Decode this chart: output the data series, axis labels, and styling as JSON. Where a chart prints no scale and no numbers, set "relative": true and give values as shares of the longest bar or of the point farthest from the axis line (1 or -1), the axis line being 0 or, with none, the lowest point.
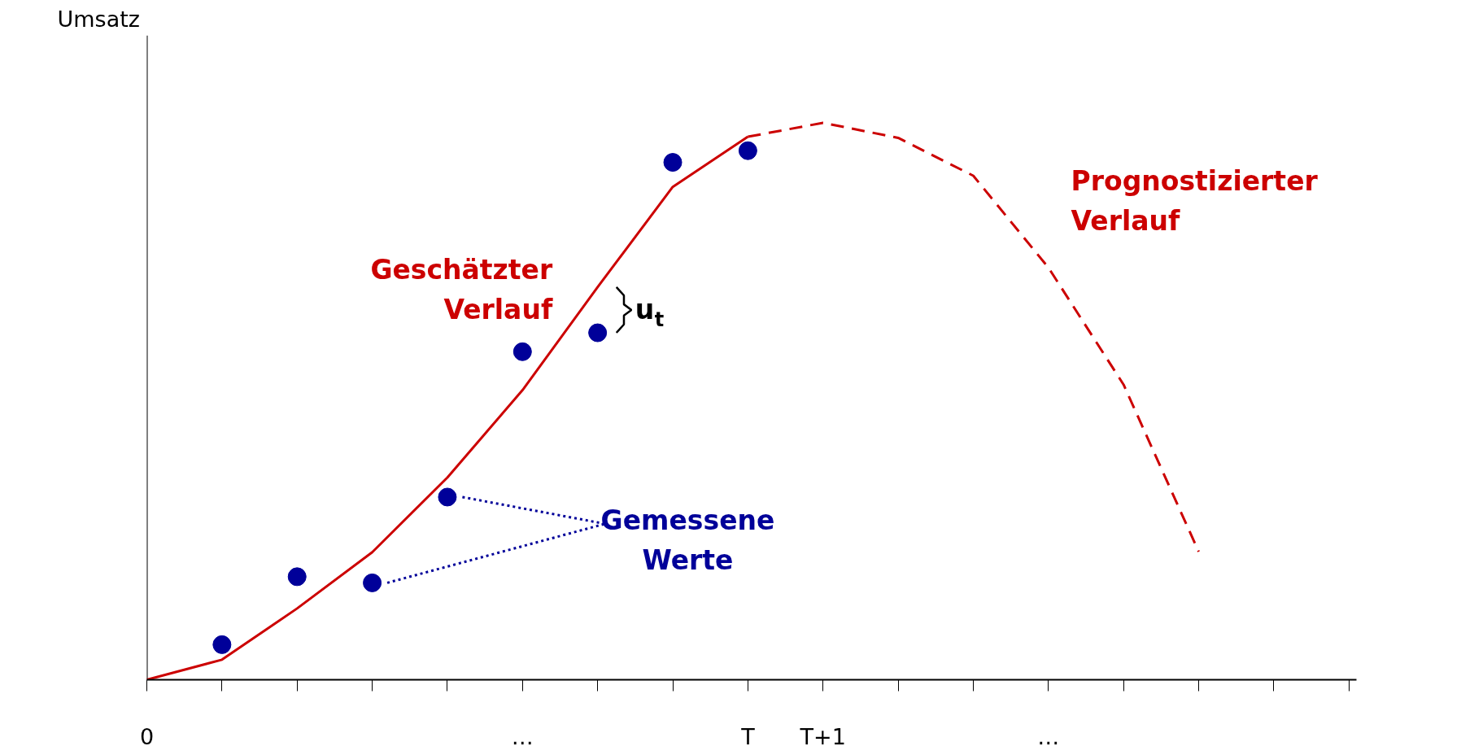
{
  "chart_data": {
    "type": "line",
    "relative": true,
    "ylabel": "Umsatz",
    "categories": [
      "0",
      null,
      null,
      null,
      null,
      "…",
      null,
      null,
      "T",
      "T+1",
      null,
      null,
      "…",
      null,
      null,
      null,
      null
    ],
    "series": [
      {
        "name": "Geschätzter Verlauf",
        "color": "#cc0000",
        "line_style": "solid",
        "values": [
          0,
          0.036,
          0.128,
          0.229,
          0.363,
          0.52,
          0.705,
          0.885,
          0.975,
          null,
          null,
          null,
          null,
          null,
          null,
          null,
          null
        ]
      },
      {
        "name": "Prognostizierter Verlauf",
        "color": "#cc0000",
        "line_style": "dashed",
        "values": [
          null,
          null,
          null,
          null,
          null,
          null,
          null,
          null,
          0.975,
          1,
          0.973,
          0.905,
          0.74,
          0.53,
          0.23,
          null,
          null
        ]
      },
      {
        "name": "Gemessene Werte",
        "type": "scatter",
        "color": "#000099",
        "marker": "circle",
        "values": [
          null,
          0.063,
          0.185,
          0.174,
          0.328,
          0.589,
          0.623,
          0.929,
          0.95,
          null,
          null,
          null,
          null,
          null,
          null,
          null,
          null
        ]
      }
    ],
    "annotations": [
      "u$_{t}$"
    ]
  }
}
